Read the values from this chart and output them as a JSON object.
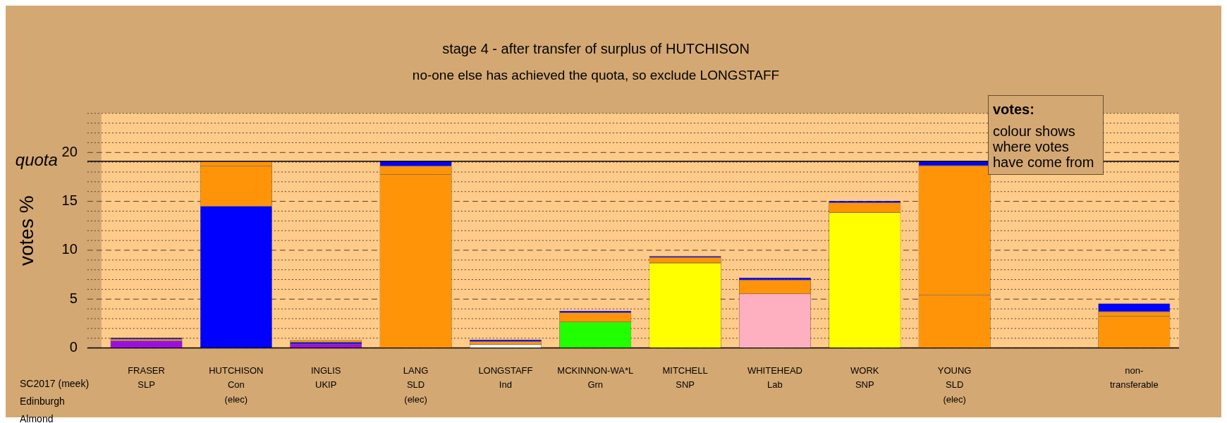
{
  "chart_data": {
    "type": "bar",
    "stacked": true,
    "title": "stage 4 - after transfer of surplus of HUTCHISON",
    "subtitle": "no-one else has achieved the quota, so exclude LONGSTAFF",
    "ylabel": "votes %",
    "categories": [
      "FRASER\nSLP",
      "HUTCHISON\nCon\n(elec)",
      "INGLIS\nUKIP",
      "LANG\nSLD\n(elec)",
      "LONGSTAFF\nInd",
      "MCKINNON-WA*L\nGrn",
      "MITCHELL\nSNP",
      "WHITEHEAD\nLab",
      "WORK\nSNP",
      "YOUNG\nSLD\n(elec)",
      null,
      "non-\ntransferable"
    ],
    "series": [
      {
        "colors": [
          "#9a0fe0",
          "#0000ff",
          "#9a0fe0",
          "#ff9408",
          "#ffffff",
          "#22ff00",
          "#ffff00",
          "#ffb0c0",
          "#ffff00",
          "#ff9408",
          "#ff9408",
          "#ff9408"
        ],
        "values": [
          0.75,
          14.5,
          0.4,
          17.75,
          0.35,
          2.65,
          8.7,
          5.55,
          13.85,
          5.4,
          null,
          3.25
        ]
      },
      {
        "colors": [
          "#ff9408",
          "#ff9408",
          "#0000ff",
          "#ff9408",
          "#ff9408",
          "#ff9408",
          "#ff9408",
          "#ff9408",
          "#ff9408",
          "#ff9408",
          "#ff9408",
          "#ff9408"
        ],
        "values": [
          0.15,
          4.1,
          0.2,
          0.85,
          0.3,
          0.95,
          0.55,
          1.4,
          1.0,
          13.25,
          null,
          0.45
        ]
      },
      {
        "colors": [
          "#0000ff",
          "#ff9408",
          "#ff9408",
          "#0000ff",
          "#0000ff",
          "#0000ff",
          "#0000ff",
          "#0000ff",
          "#0000ff",
          "#0000ff",
          "#0000ff",
          "#0000ff"
        ],
        "values": [
          0.15,
          0.5,
          0.2,
          0.5,
          0.2,
          0.2,
          0.15,
          0.25,
          0.2,
          0.45,
          null,
          0.85
        ]
      }
    ],
    "ylim": [
      0,
      24
    ],
    "yticks": [
      0,
      {
        "value": 1,
        "label": null
      },
      {
        "value": 2,
        "label": null
      },
      {
        "value": 3,
        "label": null
      },
      {
        "value": 4,
        "label": null
      },
      5,
      {
        "value": 6,
        "label": null
      },
      {
        "value": 7,
        "label": null
      },
      {
        "value": 8,
        "label": null
      },
      {
        "value": 9,
        "label": null
      },
      10,
      {
        "value": 11,
        "label": null
      },
      {
        "value": 12,
        "label": null
      },
      {
        "value": 13,
        "label": null
      },
      {
        "value": 14,
        "label": null
      },
      15,
      {
        "value": 16,
        "label": null
      },
      {
        "value": 17,
        "label": null
      },
      {
        "value": 18,
        "label": null
      },
      {
        "value": 19,
        "label": null
      },
      20,
      {
        "value": 21,
        "label": null
      },
      {
        "value": 22,
        "label": null
      },
      {
        "value": 23,
        "label": null
      },
      {
        "value": 24,
        "label": null
      }
    ],
    "grid": "y",
    "ref_lines": [
      {
        "axis": "y",
        "value": 19.1,
        "label": "quota",
        "color": "#000000"
      }
    ],
    "annotations": [
      "votes:",
      "colour shows where votes have come from",
      "SC2017 (meek)",
      "Edinburgh",
      "Almond"
    ]
  }
}
